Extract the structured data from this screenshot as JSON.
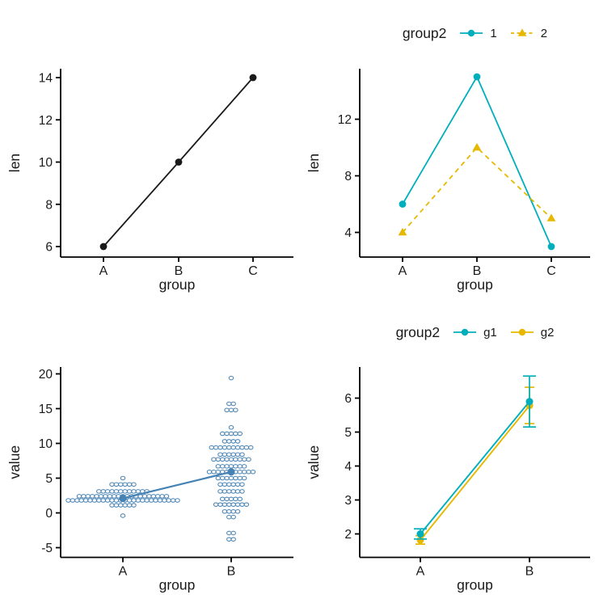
{
  "figure": {
    "background": "#ffffff"
  },
  "palette": {
    "teal": "#00AFBB",
    "gold": "#E7B800",
    "steelblue": "#4682B4",
    "black": "#1a1a1a"
  },
  "chart_data": [
    {
      "id": "basic-line",
      "type": "line",
      "title": "",
      "xlabel": "group",
      "ylabel": "len",
      "categories": [
        "A",
        "B",
        "C"
      ],
      "yticks": [
        6,
        8,
        10,
        12,
        14
      ],
      "ylim": [
        5.5,
        14.4
      ],
      "grid": false,
      "legend": null,
      "series": [
        {
          "name": "len",
          "color": "#1a1a1a",
          "marker": "circle",
          "dash": "solid",
          "values": [
            6,
            10,
            14
          ]
        }
      ]
    },
    {
      "id": "grouped-line",
      "type": "line",
      "title": "",
      "xlabel": "group",
      "ylabel": "len",
      "categories": [
        "A",
        "B",
        "C"
      ],
      "yticks": [
        4,
        8,
        12
      ],
      "ylim": [
        2.3,
        15.6
      ],
      "grid": false,
      "legend": {
        "title": "group2",
        "position": "top",
        "items": [
          {
            "label": "1",
            "color": "#00AFBB",
            "marker": "circle",
            "dash": "solid"
          },
          {
            "label": "2",
            "color": "#E7B800",
            "marker": "triangle",
            "dash": "dashed"
          }
        ]
      },
      "series": [
        {
          "name": "1",
          "color": "#00AFBB",
          "marker": "circle",
          "dash": "solid",
          "values": [
            6,
            15,
            3
          ]
        },
        {
          "name": "2",
          "color": "#E7B800",
          "marker": "triangle",
          "dash": "dashed",
          "values": [
            4,
            10,
            5
          ]
        }
      ]
    },
    {
      "id": "dotplot-line",
      "type": "dotplot-line",
      "title": "",
      "xlabel": "group",
      "ylabel": "value",
      "categories": [
        "A",
        "B"
      ],
      "yticks": [
        -5,
        0,
        5,
        10,
        15,
        20
      ],
      "ylim": [
        -6.3,
        20.9
      ],
      "grid": false,
      "legend": null,
      "dot_color": "#4682B4",
      "mean_values": [
        2.1,
        5.9
      ],
      "dot_rows": {
        "A": [
          [
            5.0,
            1
          ],
          [
            4.1,
            6
          ],
          [
            3.1,
            12
          ],
          [
            2.4,
            21
          ],
          [
            1.8,
            26
          ],
          [
            1.1,
            6
          ],
          [
            -0.4,
            1
          ]
        ],
        "B": [
          [
            19.4,
            1
          ],
          [
            15.7,
            2
          ],
          [
            14.8,
            3
          ],
          [
            12.3,
            1
          ],
          [
            11.4,
            5
          ],
          [
            10.3,
            4
          ],
          [
            9.4,
            10
          ],
          [
            8.4,
            6
          ],
          [
            7.7,
            9
          ],
          [
            6.7,
            7
          ],
          [
            5.9,
            11
          ],
          [
            5.0,
            7
          ],
          [
            4.1,
            6
          ],
          [
            3.1,
            6
          ],
          [
            2.0,
            5
          ],
          [
            1.2,
            8
          ],
          [
            0.2,
            4
          ],
          [
            -0.6,
            2
          ],
          [
            -2.9,
            2
          ],
          [
            -3.8,
            2
          ]
        ]
      }
    },
    {
      "id": "errorbar-line",
      "type": "line-errorbar",
      "title": "",
      "xlabel": "group",
      "ylabel": "value",
      "categories": [
        "A",
        "B"
      ],
      "yticks": [
        2,
        3,
        4,
        5,
        6
      ],
      "ylim": [
        1.55,
        6.8
      ],
      "grid": false,
      "legend": {
        "title": "group2",
        "position": "top",
        "items": [
          {
            "label": "g1",
            "color": "#00AFBB",
            "marker": "circle",
            "dash": "solid"
          },
          {
            "label": "g2",
            "color": "#E7B800",
            "marker": "circle",
            "dash": "solid"
          }
        ]
      },
      "series": [
        {
          "name": "g1",
          "color": "#00AFBB",
          "marker": "circle",
          "dash": "solid",
          "values": [
            2.0,
            5.9
          ],
          "err_low": [
            1.85,
            5.15
          ],
          "err_high": [
            2.15,
            6.65
          ]
        },
        {
          "name": "g2",
          "color": "#E7B800",
          "marker": "circle",
          "dash": "solid",
          "values": [
            1.82,
            5.78
          ],
          "err_low": [
            1.7,
            5.25
          ],
          "err_high": [
            1.95,
            6.32
          ]
        }
      ]
    }
  ]
}
